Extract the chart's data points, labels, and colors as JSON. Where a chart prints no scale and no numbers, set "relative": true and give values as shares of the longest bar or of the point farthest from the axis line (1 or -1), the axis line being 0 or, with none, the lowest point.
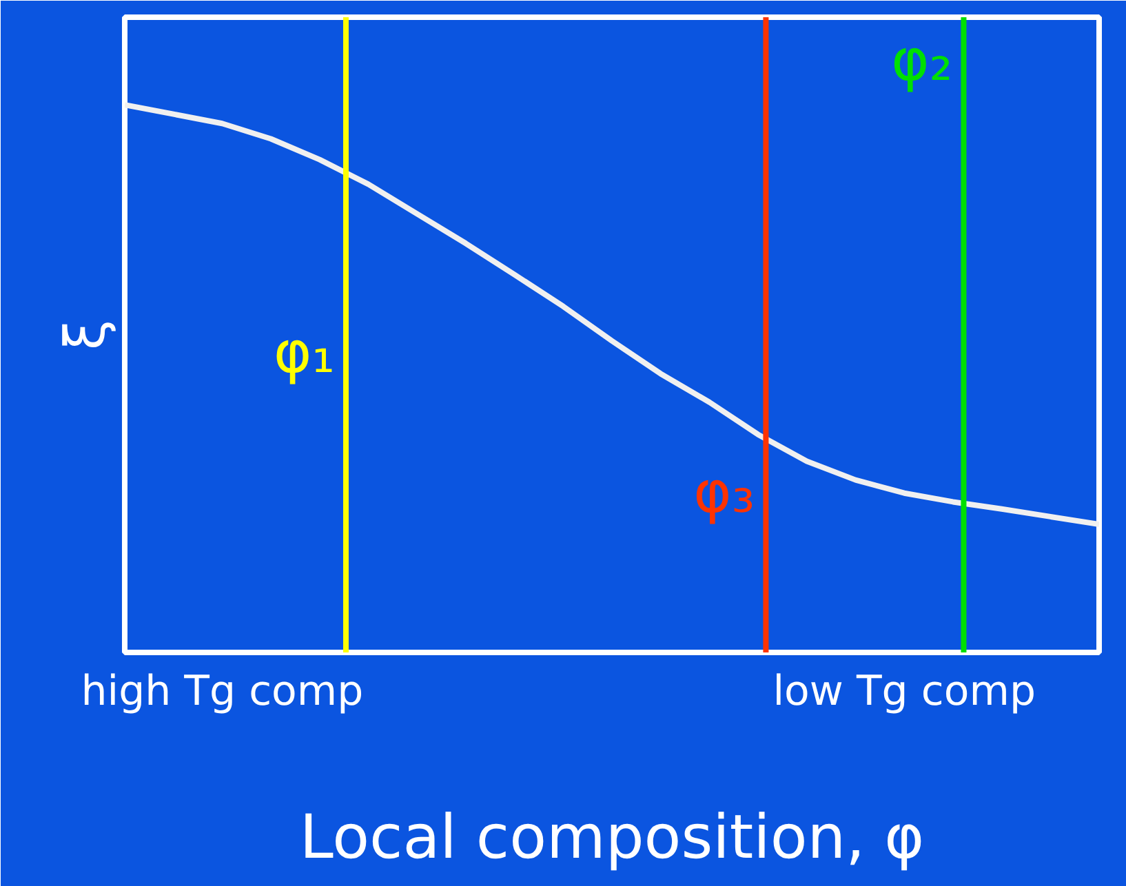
{
  "chart_data": {
    "type": "line",
    "relative": true,
    "xlabel": "Local composition, φ",
    "ylabel": "ξ",
    "categories": [
      null,
      null,
      "high Tg comp",
      null,
      null,
      null,
      null,
      null,
      null,
      null,
      null,
      null,
      null,
      null,
      null,
      null,
      "low Tg comp",
      null,
      null,
      null,
      null
    ],
    "series": [
      {
        "color": "#f0f0f0",
        "values": [
          1.0,
          0.983,
          0.966,
          0.938,
          0.9,
          0.855,
          0.801,
          0.747,
          0.69,
          0.632,
          0.569,
          0.509,
          0.457,
          0.398,
          0.349,
          0.315,
          0.291,
          0.275,
          0.262,
          0.248,
          0.234
        ]
      }
    ],
    "annotations": [
      "φ₁",
      "φ₂",
      "φ₃"
    ],
    "grid": false
  }
}
